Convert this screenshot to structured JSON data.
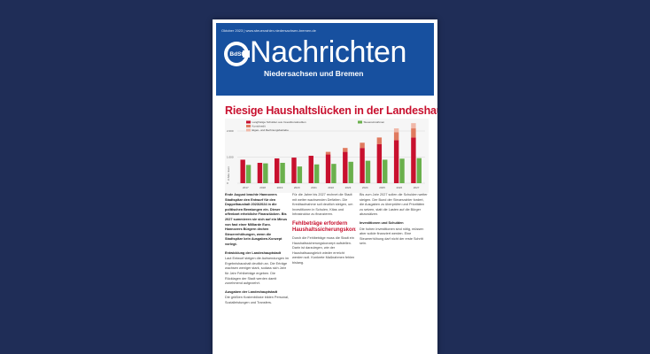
{
  "masthead": {
    "issue_line": "Oktober 2023 | www.steuerzahler-niedersachsen-bremen.de",
    "logo_text": "BdSt",
    "title": "Nachrichten",
    "subtitle": "Niedersachsen und Bremen"
  },
  "article": {
    "headline": "Riesige Haushaltslücken in der Landeshauptstadt",
    "col1_lead": "Ende August brachte Hannovers Stadtspitze den Entwurf für den Doppelhaushalt 2023/2024 in die politischen Beratungen ein. Dieser offenbart erhebliche Finanzlücken. Bis 2027 summieren sie sich auf ein Minus von fast einer Milliarde Euro. Hannovers Bürgern drohen Steuererhöhungen, wenn die Stadtspitze kein Ausgaben-Konzept vorlegt.",
    "col1_h1": "Entwicklung der Landeshauptstadt",
    "col1_p1": "Laut Entwurf steigen die Aufwendungen im Ergebnishaushalt deutlich an. Die Erträge wachsen weniger stark, sodass sich Jahr für Jahr Fehlbeträge ergeben. Die Rücklagen der Stadt werden damit zunehmend aufgezehrt.",
    "col1_h2": "Ausgaben der Landeshauptstadt",
    "col1_p2": "Die größten Kostenblöcke bilden Personal, Sozialleistungen und Transfers.",
    "col2_p1": "Für die Jahre bis 2027 rechnet die Stadt mit weiter wachsenden Defiziten. Die Kreditaufnahme soll deutlich steigen, um Investitionen in Schulen, Kitas und Infrastruktur zu finanzieren.",
    "col2_h1": "Fehlbeträge erfordern Haushaltssicherungskonzept",
    "col2_p2": "Durch die Fehlbeträge muss die Stadt ein Haushaltssicherungskonzept aufstellen. Darin ist darzulegen, wie der Haushaltsausgleich wieder erreicht werden soll. Konkrete Maßnahmen fehlen bislang.",
    "col3_p1": "Bis zum Jahr 2027 sollen die Schulden weiter steigen. Der Bund der Steuerzahler fordert, die Ausgaben zu überprüfen und Prioritäten zu setzen, statt die Lasten auf die Bürger abzuwälzen.",
    "col3_h1": "Investitionen und Schulden",
    "col3_p2": "Die hohen Investitionen sind nötig, müssen aber solide finanziert werden. Eine Steuererhöhung darf nicht der erste Schritt sein."
  },
  "chart_data": {
    "type": "bar",
    "categories": [
      "2017",
      "2018",
      "2019",
      "2020",
      "2021",
      "2022",
      "2023",
      "2024",
      "2025",
      "2026",
      "2027"
    ],
    "series": [
      {
        "name": "Langfristige Schulden aus Investitionskrediten",
        "values": [
          900,
          780,
          950,
          980,
          1050,
          1100,
          1200,
          1350,
          1500,
          1650,
          1750
        ]
      },
      {
        "name": "Steuereinnahmen",
        "values": [
          700,
          760,
          780,
          640,
          720,
          740,
          820,
          860,
          900,
          940,
          960
        ]
      },
      {
        "name": "Kontokredit",
        "values": [
          0,
          0,
          0,
          0,
          0,
          100,
          150,
          200,
          250,
          300,
          350
        ]
      },
      {
        "name": "Eigen- und Rechnungsbetriebe",
        "values": [
          0,
          0,
          0,
          0,
          0,
          0,
          0,
          0,
          0,
          150,
          200
        ]
      }
    ],
    "yticks": [
      "0",
      "1.000",
      "2.000"
    ],
    "ylim": [
      0,
      2000
    ],
    "ylabel": "in Mio. Euro",
    "colors": {
      "schulden": "#c8102e",
      "steuer": "#6ab04c",
      "kontokredit": "#e07a5f",
      "eigenbetriebe": "#f0b8a8"
    }
  }
}
